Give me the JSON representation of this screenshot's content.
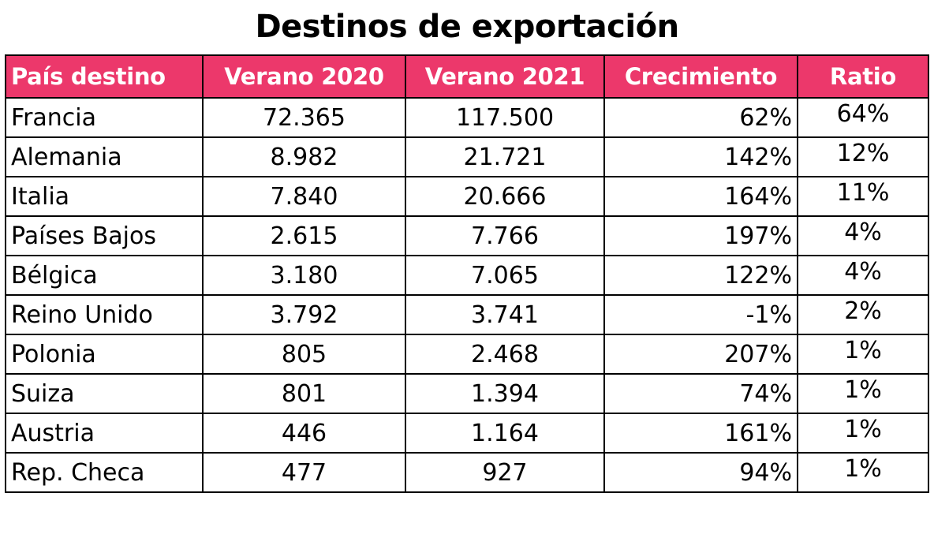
{
  "title": "Destinos de exportación",
  "headers": {
    "country": "País destino",
    "summer2020": "Verano 2020",
    "summer2021": "Verano 2021",
    "growth": "Crecimiento",
    "ratio": "Ratio"
  },
  "colors": {
    "header_background": "#ec386b",
    "header_text": "#ffffff",
    "border": "#000000"
  },
  "chart_data": {
    "type": "table",
    "title": "Destinos de exportación",
    "columns": [
      "País destino",
      "Verano 2020",
      "Verano 2021",
      "Crecimiento",
      "Ratio"
    ],
    "rows": [
      [
        "Francia",
        "72.365",
        "117.500",
        "62%",
        "64%"
      ],
      [
        "Alemania",
        "8.982",
        "21.721",
        "142%",
        "12%"
      ],
      [
        "Italia",
        "7.840",
        "20.666",
        "164%",
        "11%"
      ],
      [
        "Países Bajos",
        "2.615",
        "7.766",
        "197%",
        "4%"
      ],
      [
        "Bélgica",
        "3.180",
        "7.065",
        "122%",
        "4%"
      ],
      [
        "Reino Unido",
        "3.792",
        "3.741",
        "-1%",
        "2%"
      ],
      [
        "Polonia",
        "805",
        "2.468",
        "207%",
        "1%"
      ],
      [
        "Suiza",
        "801",
        "1.394",
        "74%",
        "1%"
      ],
      [
        "Austria",
        "446",
        "1.164",
        "161%",
        "1%"
      ],
      [
        "Rep. Checa",
        "477",
        "927",
        "94%",
        "1%"
      ]
    ]
  }
}
